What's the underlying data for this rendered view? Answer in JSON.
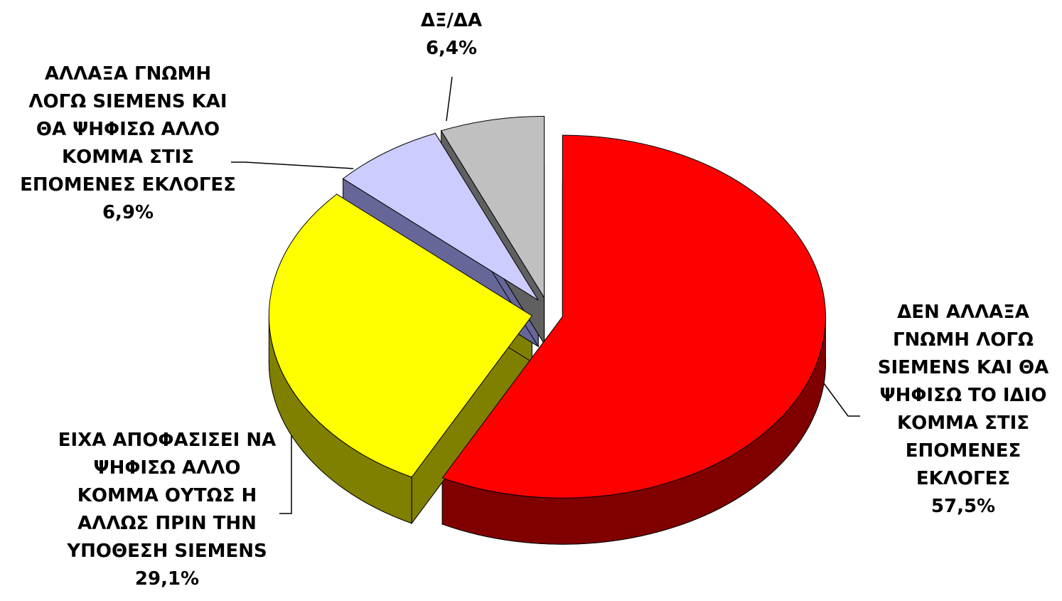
{
  "chart_data": {
    "type": "pie",
    "categories": [
      "ΔΕΝ ΑΛΛΑΞΑ ΓΝΩΜΗ ΛΟΓΩ SIEMENS ΚΑΙ ΘΑ ΨΗΦΙΣΩ ΤΟ ΙΔΙΟ ΚΟΜΜΑ ΣΤΙΣ ΕΠΟΜΕΝΕΣ ΕΚΛΟΓΕΣ",
      "ΕΙΧΑ ΑΠΟΦΑΣΙΣΕΙ ΝΑ ΨΗΦΙΣΩ ΑΛΛΟ ΚΟΜΜΑ ΟΥΤΩΣ Η ΑΛΛΩΣ ΠΡΙΝ ΤΗΝ ΥΠΟΘΕΣΗ SIEMENS",
      "ΑΛΛΑΞΑ ΓΝΩΜΗ ΛΟΓΩ SIEMENS ΚΑΙ ΘΑ ΨΗΦΙΣΩ ΑΛΛΟ ΚΟΜΜΑ ΣΤΙΣ ΕΠΟΜΕΝΕΣ ΕΚΛΟΓΕΣ",
      "ΔΞ/ΔΑ"
    ],
    "values": [
      57.5,
      29.1,
      6.9,
      6.4
    ],
    "value_labels": [
      "57,5%",
      "29,1%",
      "6,9%",
      "6,4%"
    ],
    "colors": [
      "#ff0000",
      "#ffff00",
      "#ccccff",
      "#c0c0c0"
    ],
    "side_colors": [
      "#800000",
      "#808000",
      "#666699",
      "#606060"
    ]
  }
}
